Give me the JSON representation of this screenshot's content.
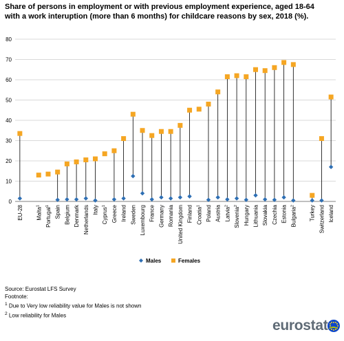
{
  "title": "Share of persons in employment or with previous employment experience, aged 18-64 with a work interuption (more than 6 months) for childcare reasons by sex, 2018 (%).",
  "colors": {
    "males": "#2e6fb4",
    "females": "#f5a623",
    "grid": "#d9d9d9",
    "stem": "#000000"
  },
  "chart_data": {
    "type": "scatter",
    "ylim": [
      0,
      80
    ],
    "yticks": [
      0,
      10,
      20,
      30,
      40,
      50,
      60,
      70,
      80
    ],
    "grid": true,
    "legend_position": "bottom",
    "categories": [
      {
        "label": "EU-28",
        "sup": ""
      },
      {
        "label": "Malta",
        "sup": "1"
      },
      {
        "label": "Portugal",
        "sup": "1"
      },
      {
        "label": "Spain",
        "sup": ""
      },
      {
        "label": "Belgium",
        "sup": ""
      },
      {
        "label": "Denmark",
        "sup": ""
      },
      {
        "label": "Netherlands",
        "sup": ""
      },
      {
        "label": "Italy",
        "sup": ""
      },
      {
        "label": "Cyprus",
        "sup": "1"
      },
      {
        "label": "Greece",
        "sup": ""
      },
      {
        "label": "Ireland",
        "sup": ""
      },
      {
        "label": "Sweden",
        "sup": ""
      },
      {
        "label": "Luxembourg",
        "sup": ""
      },
      {
        "label": "France",
        "sup": ""
      },
      {
        "label": "Germany",
        "sup": ""
      },
      {
        "label": "Romania",
        "sup": ""
      },
      {
        "label": "United Kingdom",
        "sup": ""
      },
      {
        "label": "Finland",
        "sup": ""
      },
      {
        "label": "Croatia",
        "sup": "1"
      },
      {
        "label": "Poland",
        "sup": ""
      },
      {
        "label": "Austria",
        "sup": ""
      },
      {
        "label": "Latvia",
        "sup": "2"
      },
      {
        "label": "Slovenia",
        "sup": "2"
      },
      {
        "label": "Hungary",
        "sup": ""
      },
      {
        "label": "Lithuania",
        "sup": ""
      },
      {
        "label": "Slovakia",
        "sup": ""
      },
      {
        "label": "Czechia",
        "sup": ""
      },
      {
        "label": "Estonia",
        "sup": ""
      },
      {
        "label": "Bulgaria",
        "sup": "2"
      },
      {
        "label": "Turkey",
        "sup": ""
      },
      {
        "label": "Switzerland",
        "sup": ""
      },
      {
        "label": "Iceland",
        "sup": ""
      }
    ],
    "series": [
      {
        "name": "Males",
        "marker": "diamond",
        "values": [
          1.5,
          null,
          null,
          0.8,
          1.0,
          1.0,
          1.5,
          0.5,
          null,
          1.0,
          1.5,
          12.5,
          4.0,
          1.0,
          2.0,
          1.5,
          2.0,
          2.5,
          null,
          0.8,
          2.0,
          1.0,
          1.5,
          0.8,
          3.0,
          1.0,
          0.8,
          2.0,
          0.5,
          0.5,
          0.5,
          17.0
        ]
      },
      {
        "name": "Females",
        "marker": "square",
        "values": [
          33.5,
          13.0,
          13.5,
          14.5,
          18.5,
          19.5,
          20.5,
          21.0,
          23.5,
          25.0,
          31.0,
          43.0,
          35.0,
          32.5,
          34.5,
          34.5,
          37.5,
          45.0,
          45.5,
          48.0,
          54.0,
          61.5,
          62.0,
          61.5,
          65.0,
          64.5,
          66.0,
          68.5,
          67.5,
          3.0,
          31.0,
          51.5
        ]
      }
    ]
  },
  "footer": {
    "source": "Source: Eurostat LFS Survey",
    "footnote_label": "Footnote:",
    "note1_sup": "1",
    "note1": " Due to Very low reliability value for Males is not shown",
    "note2_sup": "2",
    "note2": " Low reliability for Males"
  },
  "logo": {
    "text": "eurostat"
  }
}
